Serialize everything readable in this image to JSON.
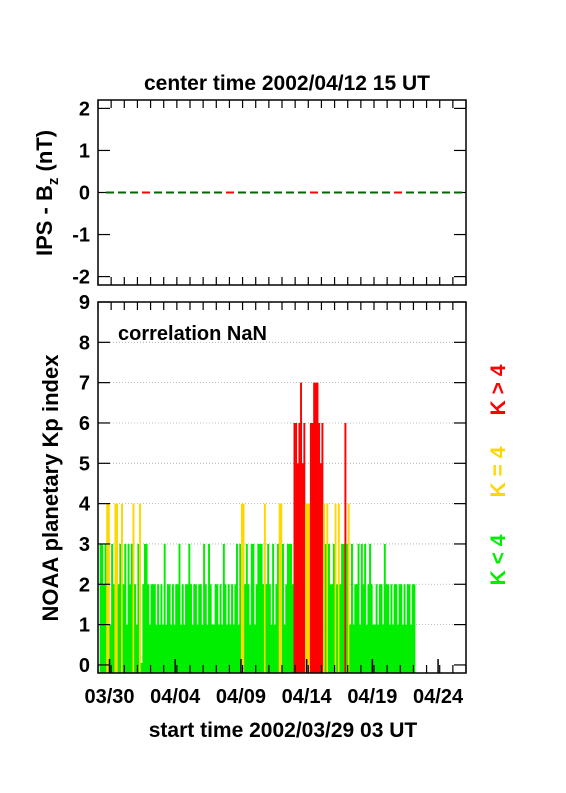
{
  "colors": {
    "low": "#00ee00",
    "mid": "#ffd700",
    "high": "#ff0000",
    "ips_dash_a": "#006600",
    "ips_dash_b": "#ff0000",
    "grid": "#aaaaaa"
  },
  "top_title": "center time 2002/04/12 15 UT",
  "bottom_title": "start time 2002/03/29 03 UT",
  "correlation_text": "correlation NaN",
  "legend": {
    "k_high": "K > 4",
    "k_equal": "K = 4",
    "k_low": "K < 4"
  },
  "chart_data": [
    {
      "type": "line",
      "ylabel_main": "IPS - B",
      "ylabel_sub": "z",
      "ylabel_unit": " (nT)",
      "ylim": [
        -2.2,
        2.2
      ],
      "yticks": [
        "2",
        "1",
        "0",
        "-1",
        "-2"
      ],
      "ytick_values": [
        2,
        1,
        0,
        -1,
        -2
      ],
      "series": [
        {
          "values_constant": 0
        }
      ],
      "grid": false
    },
    {
      "type": "bar",
      "ylabel": "NOAA planetary Kp index",
      "ylim": [
        -0.2,
        9
      ],
      "yticks": [
        "9",
        "8",
        "7",
        "6",
        "5",
        "4",
        "3",
        "2",
        "1",
        "0"
      ],
      "ytick_values": [
        9,
        8,
        7,
        6,
        5,
        4,
        3,
        2,
        1,
        0
      ],
      "xtick_labels": [
        "03/30",
        "04/04",
        "04/09",
        "04/14",
        "04/19",
        "04/24"
      ],
      "xtick_days": [
        0.875,
        5.875,
        10.875,
        15.875,
        20.875,
        25.875
      ],
      "xlim_days": [
        0,
        28
      ],
      "interval_hours": 3,
      "grid": true,
      "kp_values": [
        3,
        3,
        2,
        3,
        4,
        4,
        1,
        3,
        2,
        4,
        4,
        2,
        3,
        4,
        2,
        3,
        1,
        3,
        2,
        3,
        4,
        2,
        1,
        3,
        4,
        0,
        2,
        3,
        3,
        2,
        1,
        2,
        2,
        2,
        1,
        2,
        1,
        2,
        1,
        3,
        1,
        2,
        2,
        1,
        2,
        1,
        2,
        2,
        3,
        1,
        2,
        1,
        2,
        2,
        3,
        2,
        1,
        2,
        2,
        1,
        2,
        2,
        1,
        3,
        2,
        1,
        3,
        2,
        1,
        1,
        2,
        2,
        1,
        2,
        1,
        3,
        2,
        1,
        2,
        1,
        2,
        1,
        2,
        3,
        1,
        3,
        4,
        4,
        2,
        3,
        2,
        1,
        3,
        3,
        1,
        2,
        3,
        3,
        3,
        2,
        4,
        2,
        3,
        2,
        1,
        3,
        1,
        2,
        3,
        4,
        4,
        3,
        1,
        2,
        3,
        3,
        3,
        2,
        6,
        6,
        5,
        6,
        7,
        5,
        6,
        4,
        4,
        4,
        6,
        6,
        7,
        7,
        7,
        6,
        5,
        6,
        4,
        3,
        4,
        3,
        2,
        2,
        3,
        4,
        2,
        4,
        2,
        3,
        3,
        6,
        3,
        4,
        1,
        3,
        1,
        2,
        2,
        3,
        1,
        3,
        2,
        3,
        1,
        2,
        3,
        2,
        1,
        1,
        2,
        1,
        2,
        2,
        1,
        3,
        2,
        2,
        1,
        2,
        1,
        2,
        2,
        1,
        2,
        2,
        1,
        2,
        1,
        2,
        2,
        1,
        2,
        2
      ]
    }
  ]
}
